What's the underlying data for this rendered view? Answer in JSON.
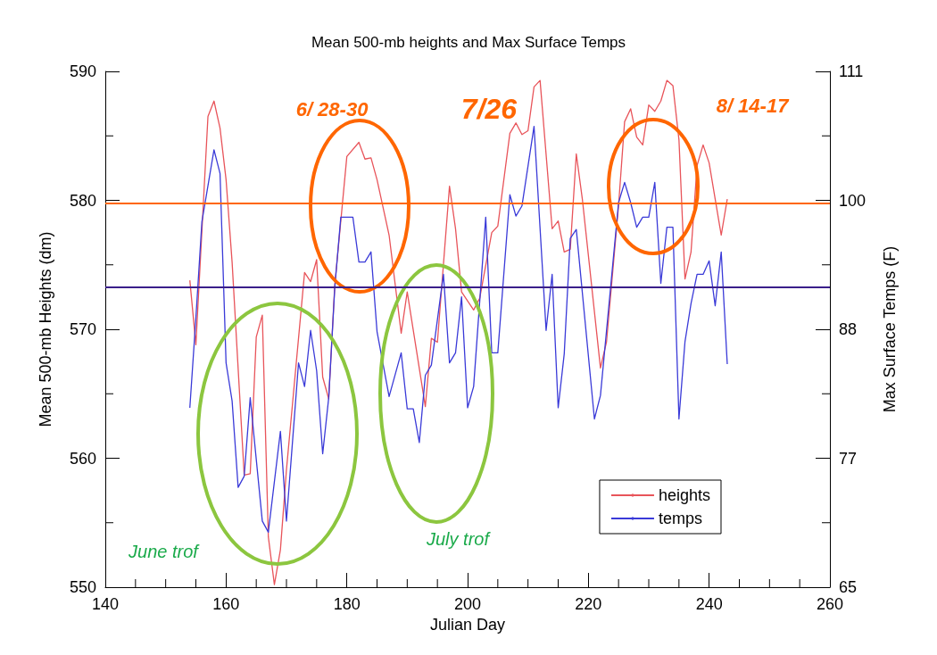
{
  "chart_data": {
    "type": "line",
    "title": "Mean 500-mb heights and Max Surface Temps",
    "xlabel": "Julian Day",
    "ylabel": "Mean 500-mb Heights (dm)",
    "y2label": "Max Surface Temps (F)",
    "xlim": [
      140,
      260
    ],
    "xticks": [
      140,
      160,
      180,
      200,
      220,
      240,
      260
    ],
    "ylim": [
      550,
      590
    ],
    "yticks": [
      550,
      560,
      570,
      580,
      590
    ],
    "y2lim": [
      65,
      111
    ],
    "y2ticks": [
      65,
      {
        "value": 76.5,
        "label": "77"
      },
      88,
      {
        "value": 99.5,
        "label": "100"
      },
      111
    ],
    "legend": "bottom right",
    "grid": false,
    "marker": "none",
    "line_style": "solid",
    "series": [
      {
        "name": "heights",
        "color": "#e8545a",
        "x": [
          154,
          155,
          157,
          158,
          159,
          160,
          161,
          163,
          164,
          165,
          166,
          167,
          168,
          169,
          170,
          171,
          173,
          174,
          175,
          176,
          177,
          178,
          180,
          182,
          183,
          184,
          185,
          187,
          189,
          190,
          193,
          194,
          195,
          197,
          198,
          199,
          201,
          202,
          204,
          205,
          207,
          208,
          209,
          210,
          211,
          212,
          214,
          215,
          216,
          217,
          218,
          219,
          222,
          223,
          225,
          226,
          227,
          228,
          229,
          230,
          231,
          232,
          233,
          234,
          235,
          236,
          237,
          238,
          239,
          240,
          241,
          242,
          243
        ],
        "values": [
          573.8,
          568.8,
          586.5,
          587.7,
          585.6,
          581.6,
          575.2,
          558.7,
          558.8,
          569.4,
          571.1,
          553.9,
          550.2,
          552.9,
          559.1,
          564.2,
          574.4,
          573.7,
          575.4,
          566.3,
          564.6,
          573.4,
          583.4,
          584.5,
          583.2,
          583.3,
          581.6,
          577.3,
          569.7,
          572.9,
          564.0,
          569.3,
          569.0,
          581.1,
          577.8,
          572.9,
          571.5,
          572.4,
          577.5,
          578.0,
          585.2,
          586.0,
          585.1,
          585.4,
          588.8,
          589.3,
          577.8,
          578.4,
          576.0,
          576.2,
          583.6,
          580.1,
          567.0,
          569.0,
          579.6,
          586.1,
          587.1,
          584.9,
          584.3,
          587.4,
          586.9,
          587.7,
          589.3,
          588.9,
          584.7,
          573.9,
          576.0,
          582.7,
          584.3,
          582.9,
          580.1,
          577.3,
          580.1
        ]
      },
      {
        "name": "temps",
        "color": "#3a3ad8",
        "axis": "y2",
        "x": [
          154,
          155,
          156,
          158,
          159,
          160,
          161,
          162,
          163,
          164,
          166,
          167,
          169,
          170,
          172,
          173,
          174,
          175,
          176,
          177,
          178,
          179,
          181,
          182,
          183,
          184,
          185,
          187,
          189,
          190,
          191,
          192,
          193,
          194,
          196,
          197,
          198,
          199,
          200,
          201,
          203,
          204,
          205,
          207,
          208,
          209,
          211,
          213,
          214,
          215,
          216,
          217,
          218,
          221,
          222,
          225,
          226,
          227,
          228,
          229,
          230,
          231,
          232,
          233,
          234,
          235,
          236,
          237,
          238,
          239,
          240,
          241,
          242,
          243
        ],
        "values": [
          81.0,
          89.0,
          97.6,
          104.0,
          101.9,
          85.0,
          81.6,
          73.9,
          74.9,
          81.9,
          70.9,
          69.9,
          78.9,
          70.9,
          85.0,
          82.9,
          87.9,
          84.3,
          76.9,
          81.9,
          91.7,
          98.0,
          98.0,
          94.0,
          94.0,
          94.9,
          87.8,
          82.0,
          85.9,
          80.9,
          80.9,
          77.9,
          83.9,
          84.8,
          92.9,
          85.0,
          85.9,
          90.9,
          81.0,
          82.9,
          98.0,
          85.9,
          85.9,
          100.0,
          98.1,
          99.0,
          106.1,
          87.9,
          92.9,
          81.0,
          85.8,
          96.1,
          96.9,
          80.0,
          82.1,
          99.3,
          101.1,
          99.3,
          97.1,
          98.0,
          98.0,
          101.1,
          92.1,
          97.1,
          97.1,
          80.0,
          86.9,
          90.3,
          92.9,
          92.9,
          94.1,
          90.1,
          94.9,
          84.9
        ]
      }
    ],
    "ref_lines": [
      {
        "axis": "y",
        "value": 579.8,
        "color": "#ff6600"
      },
      {
        "axis": "y",
        "value": 573.3,
        "color": "#3a1f8a"
      }
    ],
    "annotations": [
      "6/ 28-30",
      "7/26",
      "8/ 14-17",
      "June trof",
      "July trof"
    ]
  }
}
